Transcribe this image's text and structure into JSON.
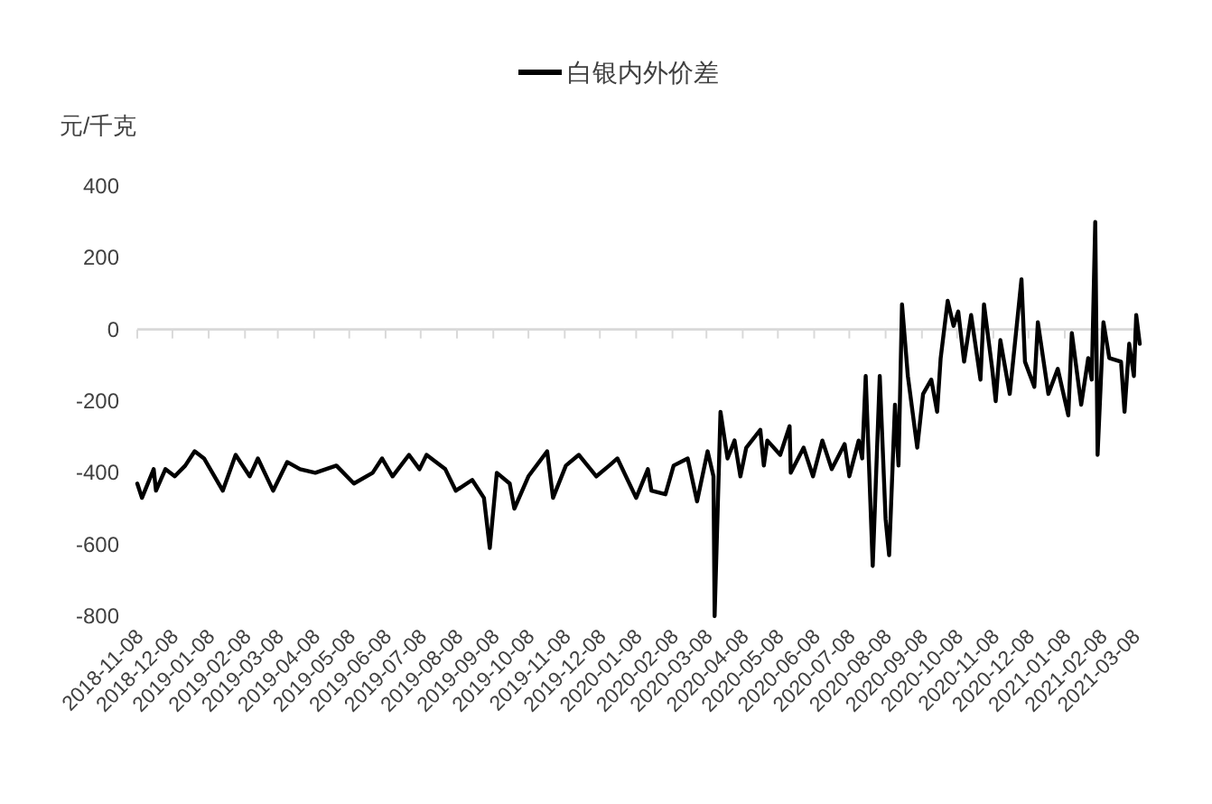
{
  "chart_data": {
    "type": "line",
    "ylabel": "元/千克",
    "legend": "top",
    "marker": "none",
    "line_style": "solid",
    "ylim": [
      -800,
      400
    ],
    "yticks": [
      -800,
      -600,
      -400,
      -200,
      0,
      200,
      400
    ],
    "xlim": [
      "2018-11-08",
      "2021-03-13"
    ],
    "xticks": [
      "2018-11-08",
      "2018-12-08",
      "2019-01-08",
      "2019-02-08",
      "2019-03-08",
      "2019-04-08",
      "2019-05-08",
      "2019-06-08",
      "2019-07-08",
      "2019-08-08",
      "2019-09-08",
      "2019-10-08",
      "2019-11-08",
      "2019-12-08",
      "2020-01-08",
      "2020-02-08",
      "2020-03-08",
      "2020-04-08",
      "2020-05-08",
      "2020-06-08",
      "2020-07-08",
      "2020-08-08",
      "2020-09-08",
      "2020-10-08",
      "2020-11-08",
      "2020-12-08",
      "2021-01-08",
      "2021-02-08",
      "2021-03-08"
    ],
    "series": [
      {
        "name": "白银内外价差",
        "color": "#000000",
        "x": [
          "2018-11-08",
          "2018-11-12",
          "2018-11-22",
          "2018-11-24",
          "2018-12-02",
          "2018-12-10",
          "2018-12-19",
          "2018-12-27",
          "2019-01-04",
          "2019-01-20",
          "2019-01-31",
          "2019-02-12",
          "2019-02-19",
          "2019-03-04",
          "2019-03-16",
          "2019-03-27",
          "2019-04-09",
          "2019-04-27",
          "2019-05-12",
          "2019-05-28",
          "2019-06-05",
          "2019-06-14",
          "2019-06-28",
          "2019-07-07",
          "2019-07-13",
          "2019-07-29",
          "2019-08-07",
          "2019-08-21",
          "2019-08-31",
          "2019-09-05",
          "2019-09-11",
          "2019-09-22",
          "2019-09-26",
          "2019-10-08",
          "2019-10-24",
          "2019-10-29",
          "2019-11-09",
          "2019-11-20",
          "2019-11-30",
          "2019-12-05",
          "2019-12-16",
          "2019-12-23",
          "2020-01-08",
          "2020-01-18",
          "2020-01-21",
          "2020-02-02",
          "2020-02-09",
          "2020-02-21",
          "2020-02-29",
          "2020-03-09",
          "2020-03-14",
          "2020-03-15",
          "2020-03-20",
          "2020-03-26",
          "2020-04-01",
          "2020-04-06",
          "2020-04-11",
          "2020-04-23",
          "2020-04-26",
          "2020-04-29",
          "2020-05-10",
          "2020-05-18",
          "2020-05-19",
          "2020-05-30",
          "2020-06-07",
          "2020-06-15",
          "2020-06-23",
          "2020-07-04",
          "2020-07-08",
          "2020-07-16",
          "2020-07-19",
          "2020-07-22",
          "2020-07-28",
          "2020-08-03",
          "2020-08-08",
          "2020-08-11",
          "2020-08-16",
          "2020-08-19",
          "2020-08-22",
          "2020-08-27",
          "2020-09-04",
          "2020-09-09",
          "2020-09-16",
          "2020-09-21",
          "2020-09-24",
          "2020-09-30",
          "2020-10-05",
          "2020-10-09",
          "2020-10-14",
          "2020-10-20",
          "2020-10-28",
          "2020-10-31",
          "2020-11-07",
          "2020-11-10",
          "2020-11-14",
          "2020-11-22",
          "2020-12-02",
          "2020-12-05",
          "2020-12-13",
          "2020-12-16",
          "2020-12-25",
          "2021-01-02",
          "2021-01-11",
          "2021-01-14",
          "2021-01-22",
          "2021-01-28",
          "2021-01-31",
          "2021-02-03",
          "2021-02-05",
          "2021-02-10",
          "2021-02-15",
          "2021-02-25",
          "2021-02-28",
          "2021-03-04",
          "2021-03-08",
          "2021-03-10",
          "2021-03-13"
        ],
        "values": [
          -430,
          -470,
          -390,
          -450,
          -390,
          -410,
          -380,
          -340,
          -360,
          -450,
          -350,
          -410,
          -360,
          -450,
          -370,
          -390,
          -400,
          -380,
          -430,
          -400,
          -360,
          -410,
          -350,
          -390,
          -350,
          -390,
          -450,
          -420,
          -470,
          -610,
          -400,
          -430,
          -500,
          -410,
          -340,
          -470,
          -380,
          -350,
          -390,
          -410,
          -380,
          -360,
          -470,
          -390,
          -450,
          -460,
          -380,
          -360,
          -480,
          -340,
          -410,
          -800,
          -230,
          -360,
          -310,
          -410,
          -330,
          -280,
          -380,
          -310,
          -350,
          -270,
          -400,
          -330,
          -410,
          -310,
          -390,
          -320,
          -410,
          -310,
          -360,
          -130,
          -660,
          -130,
          -530,
          -630,
          -210,
          -380,
          70,
          -130,
          -330,
          -180,
          -140,
          -230,
          -80,
          80,
          10,
          50,
          -90,
          40,
          -140,
          70,
          -110,
          -200,
          -30,
          -180,
          140,
          -90,
          -160,
          20,
          -180,
          -110,
          -240,
          -10,
          -210,
          -80,
          -140,
          300,
          -350,
          20,
          -80,
          -90,
          -230,
          -40,
          -130,
          40,
          -40
        ]
      }
    ]
  }
}
